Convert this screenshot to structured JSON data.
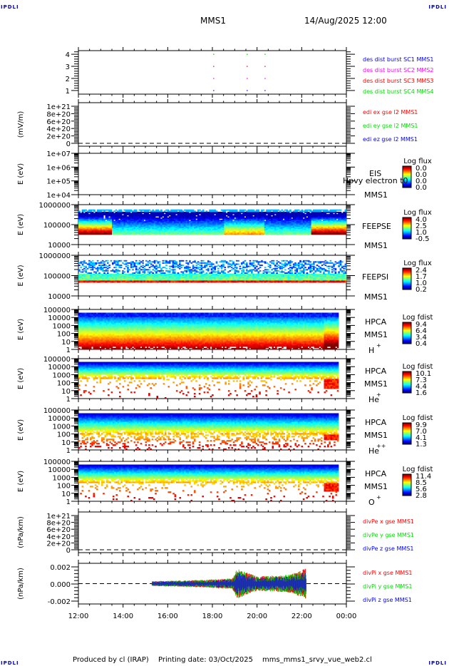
{
  "header": {
    "corner_label": "IPDLI",
    "spacecraft": "MMS1",
    "start_time": "14/Aug/2025 12:00"
  },
  "footer": {
    "produced_by": "Produced by cl (IRAP)",
    "printing_date": "Printing date: 03/Oct/2025",
    "script_name": "mms_mms1_srvy_vue_web2.cl"
  },
  "colors": {
    "red": "#ff0000",
    "green": "#00dd00",
    "blue": "#0000ff",
    "magenta": "#ff00ff",
    "corner": "#0000cc"
  },
  "chart_data": {
    "x_axis": {
      "type": "time",
      "range": [
        "12:00",
        "00:00"
      ],
      "tick_labels": [
        "12:00",
        "14:00",
        "16:00",
        "18:00",
        "20:00",
        "22:00",
        "00:00"
      ]
    },
    "panels": [
      {
        "id": "burst",
        "type": "scatter",
        "ylabel": "",
        "yticks": [
          "1",
          "2",
          "3",
          "4"
        ],
        "ylim": [
          0.7,
          4.3
        ],
        "legend": [
          {
            "label": "des dist burst SC1 MMS1",
            "color": "#0000ff"
          },
          {
            "label": "des dist burst SC2 MMS2",
            "color": "#ff00ff"
          },
          {
            "label": "des dist burst SC3 MMS3",
            "color": "#ff0000"
          },
          {
            "label": "des dist burst SC4 MMS4",
            "color": "#00dd00"
          }
        ],
        "series": [
          {
            "name": "SC1",
            "y": 1,
            "x_hours": [
              18.05,
              19.55,
              20.35
            ],
            "color": "#0000ff"
          },
          {
            "name": "SC2",
            "y": 2,
            "x_hours": [
              18.05,
              19.55,
              20.35
            ],
            "color": "#ff00ff"
          },
          {
            "name": "SC3",
            "y": 3,
            "x_hours": [
              18.05,
              19.55,
              20.35
            ],
            "color": "#ff0000"
          },
          {
            "name": "SC4",
            "y": 4,
            "x_hours": [
              18.05,
              19.55,
              20.35
            ],
            "color": "#00dd00"
          }
        ]
      },
      {
        "id": "edi",
        "type": "line",
        "ylabel": "(mV/m)",
        "yticks": [
          "0",
          "2e+20",
          "4e+20",
          "6e+20",
          "8e+20",
          "1e+21"
        ],
        "legend": [
          {
            "label": "edi ex gse l2 MMS1",
            "color": "#ff0000"
          },
          {
            "label": "edi ey gse l2 MMS1",
            "color": "#00dd00"
          },
          {
            "label": "edi ez gse l2 MMS1",
            "color": "#0000ff"
          }
        ],
        "zero_line": true
      },
      {
        "id": "eis",
        "type": "heatmap",
        "ylabel": "E (eV)",
        "yticks": [
          "1e+04",
          "1e+05",
          "1e+06",
          "1e+07"
        ],
        "instrument": "EIS",
        "overlap_label": "Hpvy electron t0",
        "spacecraft": "MMS1",
        "colorbar": {
          "title": "Log flux",
          "ticks": [
            "0.0",
            "0.0",
            "0.0",
            "0.0"
          ]
        },
        "empty": true
      },
      {
        "id": "feeps_e",
        "type": "heatmap",
        "ylabel": "E (eV)",
        "yticks": [
          "10000",
          "100000",
          "1000000"
        ],
        "instrument": "FEEPSE",
        "spacecraft": "MMS1",
        "colorbar": {
          "title": "Log flux",
          "ticks": [
            "4.0",
            "2.5",
            "1.0",
            "-0.5"
          ]
        },
        "range_log_e": [
          4.5,
          5.7
        ],
        "data_end_hour": 24
      },
      {
        "id": "feeps_i",
        "type": "heatmap",
        "ylabel": "E (eV)",
        "yticks": [
          "10000",
          "100000",
          "1000000"
        ],
        "instrument": "FEEPSI",
        "spacecraft": "MMS1",
        "colorbar": {
          "title": "Log flux",
          "ticks": [
            "2.4",
            "1.7",
            "1.0",
            "0.2"
          ]
        },
        "range_log_e": [
          4.7,
          5.7
        ],
        "data_end_hour": 24
      },
      {
        "id": "hpca_h",
        "type": "heatmap",
        "ylabel": "E (eV)",
        "yticks": [
          "1",
          "10",
          "100",
          "1000",
          "10000",
          "100000"
        ],
        "instrument": "HPCA",
        "spacecraft": "MMS1",
        "species": "H",
        "charge": "+",
        "colorbar": {
          "title": "Log fdist",
          "ticks": [
            "9.4",
            "6.4",
            "3.4",
            "0.4"
          ]
        },
        "data_end_hour": 23.65
      },
      {
        "id": "hpca_he1",
        "type": "heatmap",
        "ylabel": "E (eV)",
        "yticks": [
          "1",
          "10",
          "100",
          "1000",
          "10000",
          "100000"
        ],
        "instrument": "HPCA",
        "spacecraft": "MMS1",
        "species": "He",
        "charge": "+",
        "colorbar": {
          "title": "Log fdist",
          "ticks": [
            "10.1",
            "7.3",
            "4.4",
            "1.6"
          ]
        },
        "data_end_hour": 23.65
      },
      {
        "id": "hpca_he2",
        "type": "heatmap",
        "ylabel": "E (eV)",
        "yticks": [
          "1",
          "10",
          "100",
          "1000",
          "10000",
          "100000"
        ],
        "instrument": "HPCA",
        "spacecraft": "MMS1",
        "species": "He",
        "charge": "++",
        "colorbar": {
          "title": "Log fdist",
          "ticks": [
            "9.9",
            "7.0",
            "4.1",
            "1.3"
          ]
        },
        "data_end_hour": 23.65
      },
      {
        "id": "hpca_o",
        "type": "heatmap",
        "ylabel": "E (eV)",
        "yticks": [
          "1",
          "10",
          "100",
          "1000",
          "10000",
          "100000"
        ],
        "instrument": "HPCA",
        "spacecraft": "MMS1",
        "species": "O",
        "charge": "+",
        "colorbar": {
          "title": "Log fdist",
          "ticks": [
            "11.4",
            "8.5",
            "5.6",
            "2.8"
          ]
        },
        "data_end_hour": 23.65
      },
      {
        "id": "divpe",
        "type": "line",
        "ylabel": "(nPa/km)",
        "yticks": [
          "0",
          "2e+20",
          "4e+20",
          "6e+20",
          "8e+20",
          "1e+21"
        ],
        "legend": [
          {
            "label": "divPe x gse MMS1",
            "color": "#ff0000"
          },
          {
            "label": "divPe y gse MMS1",
            "color": "#00dd00"
          },
          {
            "label": "divPe z gse MMS1",
            "color": "#0000ff"
          }
        ],
        "zero_line": true
      },
      {
        "id": "divpi",
        "type": "line",
        "ylabel": "(nPa/km)",
        "yticks": [
          "-0.002",
          "0.000",
          "0.002"
        ],
        "ylim": [
          -0.0032,
          0.0032
        ],
        "legend": [
          {
            "label": "divPi x gse MMS1",
            "color": "#ff0000"
          },
          {
            "label": "divPi y gse MMS1",
            "color": "#00dd00"
          },
          {
            "label": "divPi z gse MMS1",
            "color": "#0000ff"
          }
        ],
        "zero_line": true,
        "data_range_hours": [
          15.3,
          22.2
        ],
        "amplitude_envelope": [
          {
            "hour": 15.3,
            "amp": 0.0004
          },
          {
            "hour": 17.5,
            "amp": 0.0006
          },
          {
            "hour": 18.9,
            "amp": 0.0009
          },
          {
            "hour": 19.1,
            "amp": 0.0025
          },
          {
            "hour": 20.0,
            "amp": 0.0012
          },
          {
            "hour": 21.5,
            "amp": 0.0015
          },
          {
            "hour": 22.2,
            "amp": 0.0026
          }
        ]
      }
    ]
  }
}
